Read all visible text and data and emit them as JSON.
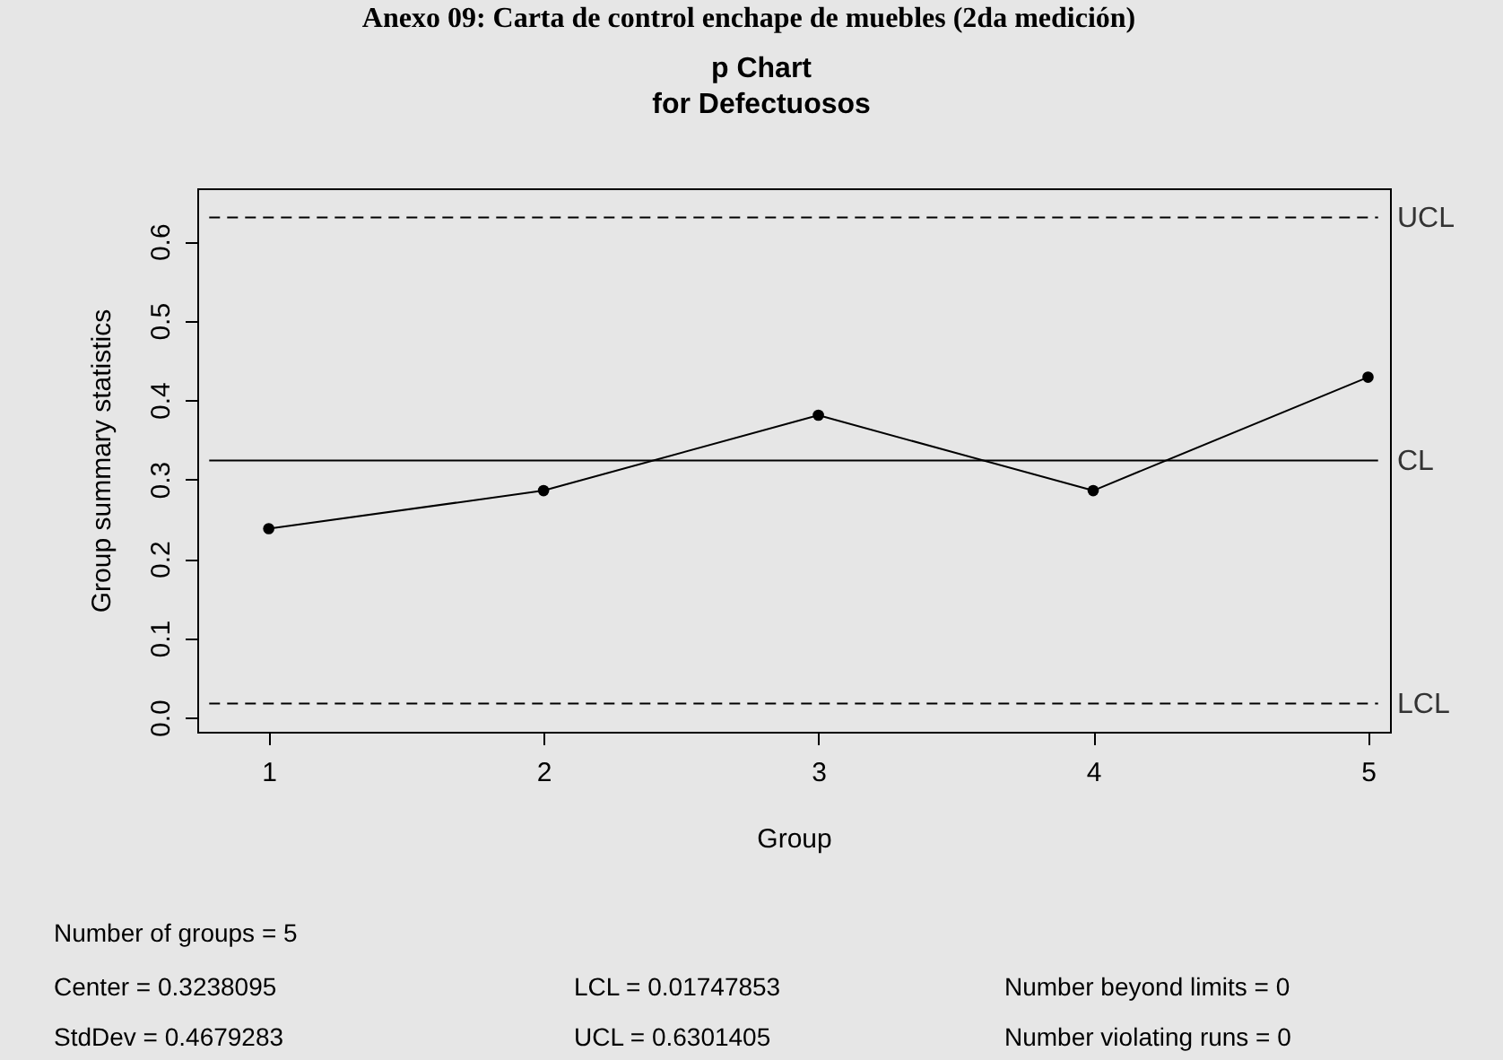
{
  "chart_data": {
    "type": "line",
    "title": "p Chart",
    "subtitle": "for Defectuosos",
    "xlabel": "Group",
    "ylabel": "Group summary statistics",
    "x": [
      1,
      2,
      3,
      4,
      5
    ],
    "series": [
      {
        "color": "#000000",
        "values": [
          0.238,
          0.286,
          0.381,
          0.286,
          0.429
        ]
      }
    ],
    "marker": "circle",
    "line_style": "solid",
    "grid": false,
    "xlim": [
      0.74,
      5.08
    ],
    "xticks": [
      1,
      2,
      3,
      4,
      5
    ],
    "ylim": [
      -0.018,
      0.667
    ],
    "yticks": [
      {
        "value": 0,
        "label": "0.0"
      },
      0.1,
      0.2,
      0.3,
      0.4,
      0.5,
      0.6
    ],
    "ref_lines": [
      {
        "axis": "y",
        "value": 0.6301405,
        "label": "UCL",
        "line_style": "dashed",
        "color": "#000000"
      },
      {
        "axis": "y",
        "value": 0.3238095,
        "label": "CL",
        "line_style": "solid",
        "color": "#000000"
      },
      {
        "axis": "y",
        "value": 0.01747853,
        "label": "LCL",
        "line_style": "dashed",
        "color": "#000000"
      }
    ],
    "annotations": [
      "Anexo 09: Carta de control enchape de muebles (2da medición)",
      "Number of groups = 5",
      "Center = 0.3238095",
      "LCL = 0.01747853",
      "Number beyond limits = 0",
      "StdDev = 0.4679283",
      "UCL = 0.6301405",
      "Number violating runs = 0"
    ]
  }
}
